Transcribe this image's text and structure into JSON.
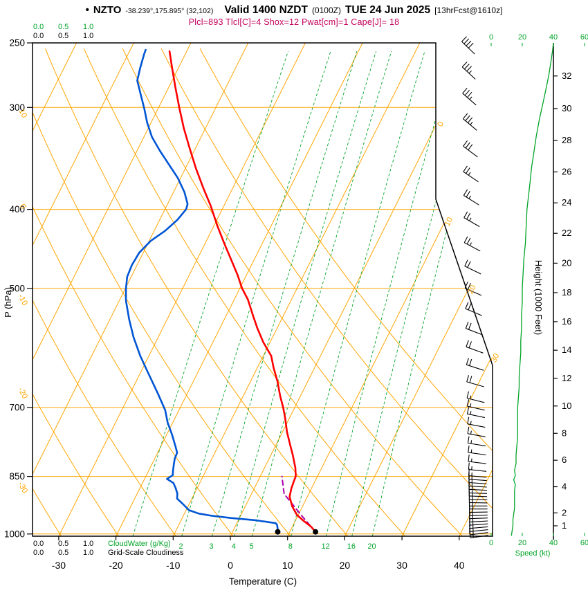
{
  "header": {
    "bullet": "•",
    "station": "NZTO",
    "coords": "-38.239°,175.895° (32,102)",
    "valid_label": "Valid 1400 NZDT",
    "valid_z": "(0100Z)",
    "valid_date": "TUE 24 Jun 2025",
    "fcst": "[13hrFcst@1610z]",
    "indices": "Plcl=893 Tlcl[C]=4 Shox=12 Pwat[cm]=1 Cape[J]= 18"
  },
  "colors": {
    "grid_orange": "#FFA500",
    "green": "#00A427",
    "temperature_red": "#FF0000",
    "dewpoint_blue": "#0055D4",
    "parcel_magenta": "#AA00AA",
    "indices_crimson": "#C2005C",
    "black": "#000000"
  },
  "axes": {
    "pressure": {
      "label": "P (hPa)",
      "ticks": [
        250,
        300,
        400,
        500,
        700,
        850,
        1000
      ]
    },
    "temperature": {
      "label": "Temperature (C)",
      "ticks": [
        -30,
        -20,
        -10,
        0,
        10,
        20,
        30,
        40
      ]
    },
    "height": {
      "label": "Height (1000 Feet)",
      "ticks": [
        32,
        30,
        28,
        26,
        24,
        22,
        20,
        18,
        16,
        14,
        12,
        10,
        8,
        6,
        4,
        2,
        1
      ]
    },
    "speed": {
      "label": "Speed (kt)",
      "ticks": [
        0,
        20,
        40,
        60
      ]
    },
    "cloudwater": {
      "label": "CloudWater (g/Kg)",
      "ticks": [
        "0.0",
        "0.5",
        "1.0"
      ]
    },
    "cloudiness": {
      "label": "Grid-Scale Cloudiness",
      "ticks": [
        "0.0",
        "0.5",
        "1.0"
      ]
    }
  },
  "chart_data": {
    "type": "line",
    "subtype": "skew-t log-p atmospheric sounding",
    "pressure_range_hPa": [
      250,
      1005
    ],
    "isotherm_step_C": 10,
    "dry_adiabat_step_C": 10,
    "isotherm_labels_C": [
      0,
      10,
      20,
      30
    ],
    "dry_adiabat_labels_C": [
      10,
      0,
      -10,
      -20,
      -30
    ],
    "mixing_ratio_lines_gkg": [
      1,
      2,
      3,
      4,
      5,
      8,
      12,
      16,
      20
    ],
    "mixing_ratio_label_values": [
      2,
      3,
      4,
      5,
      8,
      12,
      16,
      20
    ],
    "surface": {
      "pressure_hPa": 994,
      "temperature_C": 14.5,
      "dewpoint_C": 7.9
    },
    "series": [
      {
        "name": "temperature_C",
        "points": [
          [
            994,
            14.5
          ],
          [
            980,
            13.3
          ],
          [
            965,
            11.6
          ],
          [
            948,
            9.8
          ],
          [
            925,
            8.2
          ],
          [
            900,
            6.9
          ],
          [
            880,
            6.5
          ],
          [
            862,
            6.3
          ],
          [
            850,
            6.2
          ],
          [
            830,
            5.4
          ],
          [
            800,
            3.8
          ],
          [
            778,
            2.5
          ],
          [
            750,
            0.8
          ],
          [
            720,
            -0.8
          ],
          [
            700,
            -2.0
          ],
          [
            678,
            -3.5
          ],
          [
            650,
            -5.3
          ],
          [
            625,
            -7.2
          ],
          [
            605,
            -8.6
          ],
          [
            582,
            -11.2
          ],
          [
            560,
            -13.4
          ],
          [
            540,
            -15.3
          ],
          [
            516,
            -17.6
          ],
          [
            500,
            -19.6
          ],
          [
            481,
            -21.6
          ],
          [
            462,
            -23.9
          ],
          [
            440,
            -26.7
          ],
          [
            419,
            -29.4
          ],
          [
            396,
            -32.3
          ],
          [
            377,
            -35.1
          ],
          [
            356,
            -38.2
          ],
          [
            336,
            -41.1
          ],
          [
            318,
            -43.8
          ],
          [
            300,
            -46.4
          ],
          [
            283,
            -48.9
          ],
          [
            267,
            -51.3
          ],
          [
            256,
            -53.0
          ]
        ]
      },
      {
        "name": "dewpoint_C",
        "points": [
          [
            994,
            7.9
          ],
          [
            985,
            7.6
          ],
          [
            975,
            7.2
          ],
          [
            970,
            6.8
          ],
          [
            962,
            3.0
          ],
          [
            956,
            -1.5
          ],
          [
            950,
            -5.0
          ],
          [
            944,
            -7.5
          ],
          [
            935,
            -9.5
          ],
          [
            918,
            -11.2
          ],
          [
            905,
            -12.6
          ],
          [
            892,
            -13.0
          ],
          [
            878,
            -13.8
          ],
          [
            866,
            -14.6
          ],
          [
            856,
            -16.1
          ],
          [
            847,
            -15.4
          ],
          [
            838,
            -15.7
          ],
          [
            820,
            -16.2
          ],
          [
            808,
            -16.5
          ],
          [
            795,
            -16.6
          ],
          [
            780,
            -17.5
          ],
          [
            755,
            -19.1
          ],
          [
            730,
            -20.9
          ],
          [
            705,
            -22.4
          ],
          [
            672,
            -25.2
          ],
          [
            634,
            -28.7
          ],
          [
            605,
            -31.5
          ],
          [
            574,
            -34.3
          ],
          [
            546,
            -36.6
          ],
          [
            518,
            -38.8
          ],
          [
            500,
            -39.9
          ],
          [
            484,
            -40.7
          ],
          [
            468,
            -40.9
          ],
          [
            452,
            -40.7
          ],
          [
            437,
            -39.7
          ],
          [
            425,
            -38.1
          ],
          [
            412,
            -36.9
          ],
          [
            400,
            -36.3
          ],
          [
            394,
            -36.5
          ],
          [
            381,
            -38.1
          ],
          [
            366,
            -40.5
          ],
          [
            352,
            -43.3
          ],
          [
            339,
            -46.0
          ],
          [
            326,
            -48.6
          ],
          [
            313,
            -50.7
          ],
          [
            301,
            -52.4
          ],
          [
            289,
            -54.3
          ],
          [
            278,
            -56.1
          ],
          [
            268,
            -56.7
          ],
          [
            258,
            -57.2
          ],
          [
            255,
            -57.3
          ]
        ]
      },
      {
        "name": "parcel_C",
        "points": [
          [
            994,
            14.5
          ],
          [
            950,
            10.7
          ],
          [
            893,
            5.7
          ],
          [
            868,
            4.6
          ],
          [
            850,
            3.8
          ]
        ]
      },
      {
        "name": "wind_speed_kt",
        "points": [
          [
            1005,
            13
          ],
          [
            990,
            13.5
          ],
          [
            975,
            14
          ],
          [
            960,
            14
          ],
          [
            945,
            14.5
          ],
          [
            930,
            15
          ],
          [
            915,
            15
          ],
          [
            900,
            15
          ],
          [
            885,
            15
          ],
          [
            870,
            15.5
          ],
          [
            858,
            14.5
          ],
          [
            848,
            15.5
          ],
          [
            835,
            15
          ],
          [
            820,
            16
          ],
          [
            800,
            16
          ],
          [
            780,
            16.5
          ],
          [
            760,
            17
          ],
          [
            740,
            17
          ],
          [
            720,
            17
          ],
          [
            700,
            17
          ],
          [
            680,
            17.5
          ],
          [
            660,
            18
          ],
          [
            640,
            18
          ],
          [
            620,
            18.5
          ],
          [
            600,
            19
          ],
          [
            580,
            19
          ],
          [
            560,
            19.5
          ],
          [
            540,
            19.5
          ],
          [
            520,
            20
          ],
          [
            500,
            20
          ],
          [
            480,
            20.5
          ],
          [
            460,
            21
          ],
          [
            440,
            22
          ],
          [
            420,
            22.5
          ],
          [
            400,
            23
          ],
          [
            385,
            24
          ],
          [
            370,
            25
          ],
          [
            355,
            26
          ],
          [
            340,
            27.5
          ],
          [
            325,
            29
          ],
          [
            310,
            31
          ],
          [
            298,
            33
          ],
          [
            286,
            35
          ],
          [
            274,
            37
          ],
          [
            263,
            38.5
          ],
          [
            255,
            39.5
          ],
          [
            250,
            40
          ]
        ]
      }
    ],
    "wind_barbs": [
      [
        1004,
        15,
        262
      ],
      [
        996,
        15,
        263
      ],
      [
        988,
        15,
        264
      ],
      [
        980,
        15,
        265
      ],
      [
        972,
        15,
        266
      ],
      [
        964,
        15,
        267
      ],
      [
        956,
        15,
        268
      ],
      [
        948,
        15,
        268
      ],
      [
        940,
        15,
        269
      ],
      [
        932,
        15,
        270
      ],
      [
        924,
        15,
        270
      ],
      [
        916,
        15,
        271
      ],
      [
        908,
        15,
        271
      ],
      [
        900,
        15,
        272
      ],
      [
        892,
        15,
        272
      ],
      [
        884,
        15,
        273
      ],
      [
        876,
        15,
        273
      ],
      [
        868,
        15,
        274
      ],
      [
        860,
        15,
        274
      ],
      [
        852,
        15,
        275
      ],
      [
        838,
        15,
        276
      ],
      [
        820,
        16,
        277
      ],
      [
        800,
        16,
        278
      ],
      [
        780,
        16,
        279
      ],
      [
        760,
        17,
        280
      ],
      [
        740,
        17,
        281
      ],
      [
        720,
        17,
        282
      ],
      [
        705,
        17,
        283
      ],
      [
        690,
        17,
        284
      ],
      [
        660,
        18,
        286
      ],
      [
        630,
        18,
        288
      ],
      [
        600,
        19,
        290
      ],
      [
        570,
        20,
        291
      ],
      [
        540,
        20,
        293
      ],
      [
        510,
        21,
        294
      ],
      [
        480,
        22,
        296
      ],
      [
        450,
        23,
        298
      ],
      [
        420,
        24,
        300
      ],
      [
        395,
        26,
        302
      ],
      [
        370,
        27,
        304
      ],
      [
        345,
        30,
        307
      ],
      [
        320,
        33,
        310
      ],
      [
        298,
        35,
        311
      ],
      [
        277,
        37,
        313
      ],
      [
        258,
        39,
        314
      ]
    ]
  }
}
